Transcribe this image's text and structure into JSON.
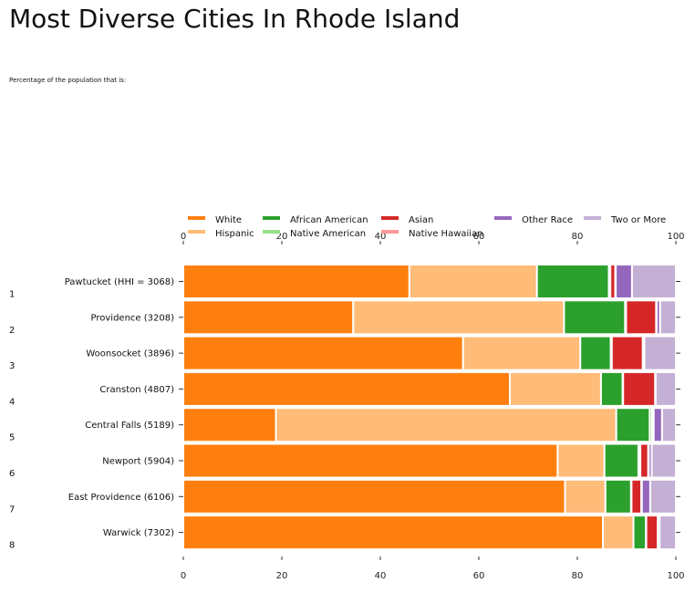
{
  "title": "Most Diverse Cities In Rhode Island",
  "subtitle": "Percentage of the population that is:",
  "chart_data": {
    "type": "bar",
    "orientation": "horizontal",
    "stacked": true,
    "categories": [
      "Pawtucket (HHI = 3068)",
      "Providence (3208)",
      "Woonsocket (3896)",
      "Cranston (4807)",
      "Central Falls (5189)",
      "Newport (5904)",
      "East Providence (6106)",
      "Warwick (7302)"
    ],
    "rank_labels": [
      "1",
      "2",
      "3",
      "4",
      "5",
      "6",
      "7",
      "8"
    ],
    "series": [
      {
        "name": "White",
        "color": "#ff7f0e",
        "values": [
          45.9,
          34.5,
          56.8,
          66.3,
          18.8,
          76.0,
          77.5,
          85.2
        ]
      },
      {
        "name": "Hispanic",
        "color": "#ffbb78",
        "values": [
          25.9,
          42.8,
          23.8,
          18.5,
          69.1,
          9.5,
          8.2,
          6.2
        ]
      },
      {
        "name": "African American",
        "color": "#2ca02c",
        "values": [
          14.6,
          12.4,
          6.2,
          4.4,
          6.8,
          6.9,
          5.2,
          2.5
        ]
      },
      {
        "name": "Native American",
        "color": "#98df8a",
        "values": [
          0.3,
          0.2,
          0.2,
          0.1,
          0.5,
          0.4,
          0.1,
          0.1
        ]
      },
      {
        "name": "Asian",
        "color": "#d62728",
        "values": [
          1.0,
          6.1,
          6.3,
          6.5,
          0.2,
          1.6,
          2.0,
          2.3
        ]
      },
      {
        "name": "Native Hawaiian",
        "color": "#ff9896",
        "values": [
          0.1,
          0.1,
          0.1,
          0.0,
          0.1,
          0.1,
          0.1,
          0.0
        ]
      },
      {
        "name": "Other Race",
        "color": "#9467bd",
        "values": [
          3.3,
          0.7,
          0.2,
          0.1,
          1.7,
          0.6,
          1.7,
          0.4
        ]
      },
      {
        "name": "Two or More",
        "color": "#c5b0d5",
        "values": [
          8.9,
          3.2,
          6.4,
          4.1,
          2.8,
          4.9,
          5.2,
          3.3
        ]
      }
    ],
    "xlim": [
      0,
      100
    ],
    "xticks": [
      0,
      20,
      40,
      60,
      80,
      100
    ],
    "legend_position": "top",
    "grid": false
  }
}
